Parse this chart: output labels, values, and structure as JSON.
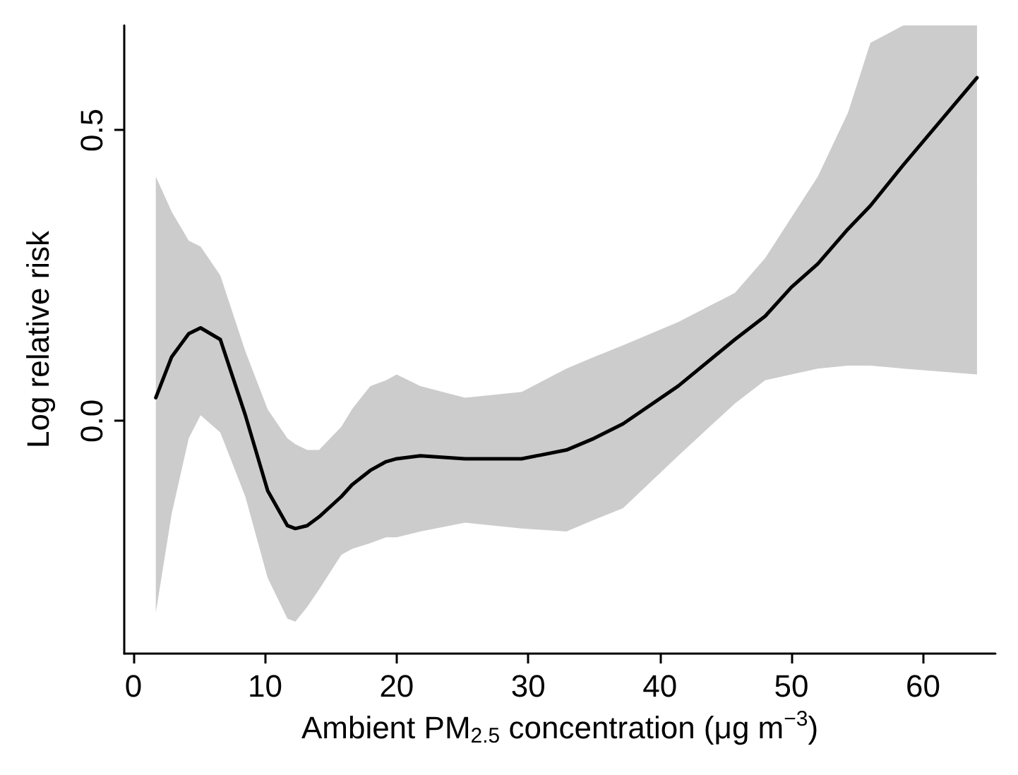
{
  "chart_data": {
    "type": "line",
    "xlabel": "Ambient PM$_{2.5}$ concentration (μg m$^{−3}$)",
    "ylabel": "Log relative risk",
    "x": [
      1.7,
      2.9,
      4.2,
      5.1,
      6.6,
      8.5,
      10.2,
      11.7,
      12.3,
      13.2,
      14.1,
      15.8,
      16.6,
      18.0,
      19.2,
      20.0,
      21.8,
      25.2,
      29.5,
      32.9,
      35.0,
      37.2,
      41.4,
      45.7,
      48.0,
      50.0,
      52.0,
      54.3,
      56.0,
      58.5,
      64.1
    ],
    "series": [
      {
        "color": "#000000",
        "values": [
          0.04,
          0.11,
          0.15,
          0.16,
          0.14,
          0.01,
          -0.12,
          -0.18,
          -0.185,
          -0.18,
          -0.165,
          -0.13,
          -0.11,
          -0.085,
          -0.07,
          -0.065,
          -0.06,
          -0.065,
          -0.065,
          -0.05,
          -0.03,
          -0.005,
          0.06,
          0.14,
          0.18,
          0.23,
          0.27,
          0.33,
          0.37,
          0.44,
          0.59
        ],
        "upper": [
          0.42,
          0.36,
          0.31,
          0.3,
          0.25,
          0.12,
          0.02,
          -0.03,
          -0.04,
          -0.05,
          -0.05,
          -0.01,
          0.02,
          0.06,
          0.07,
          0.08,
          0.06,
          0.04,
          0.05,
          0.09,
          0.11,
          0.13,
          0.17,
          0.22,
          0.28,
          0.35,
          0.42,
          0.53,
          0.65,
          0.68,
          0.68
        ],
        "lower": [
          -0.33,
          -0.16,
          -0.03,
          0.01,
          -0.02,
          -0.13,
          -0.27,
          -0.34,
          -0.345,
          -0.32,
          -0.29,
          -0.23,
          -0.22,
          -0.21,
          -0.2,
          -0.2,
          -0.19,
          -0.175,
          -0.185,
          -0.19,
          -0.17,
          -0.15,
          -0.06,
          0.03,
          0.07,
          0.08,
          0.09,
          0.095,
          0.095,
          0.09,
          0.08
        ]
      }
    ],
    "xlim": [
      -0.7,
      65.5
    ],
    "ylim": [
      -0.4,
      0.68
    ],
    "xticks": [
      0,
      10,
      20,
      30,
      40,
      50,
      60
    ],
    "yticks": [
      {
        "value": 0,
        "label": "0.0"
      },
      0.5
    ],
    "marker": "none",
    "line_style": "solid"
  }
}
